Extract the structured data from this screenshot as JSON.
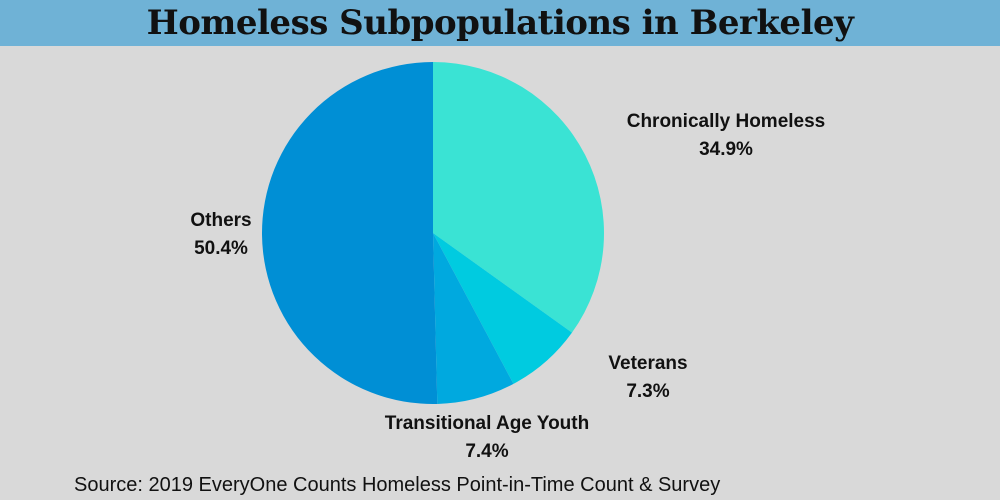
{
  "chart_data": {
    "type": "pie",
    "title": "Homeless Subpopulations in Berkeley",
    "slices": [
      {
        "label": "Chronically Homeless",
        "value": 34.9,
        "display": "34.9%",
        "color": "#3ae3d4"
      },
      {
        "label": "Veterans",
        "value": 7.3,
        "display": "7.3%",
        "color": "#00cbe0"
      },
      {
        "label": "Transitional Age Youth",
        "value": 7.4,
        "display": "7.4%",
        "color": "#00a9df"
      },
      {
        "label": "Others",
        "value": 50.4,
        "display": "50.4%",
        "color": "#008fd5"
      }
    ],
    "legend": "none",
    "labels": "outside"
  },
  "source": "Source: 2019 EveryOne Counts Homeless Point-in-Time Count & Survey",
  "colors": {
    "title_bar": "#6fb2d6",
    "background": "#d9d9d9"
  }
}
